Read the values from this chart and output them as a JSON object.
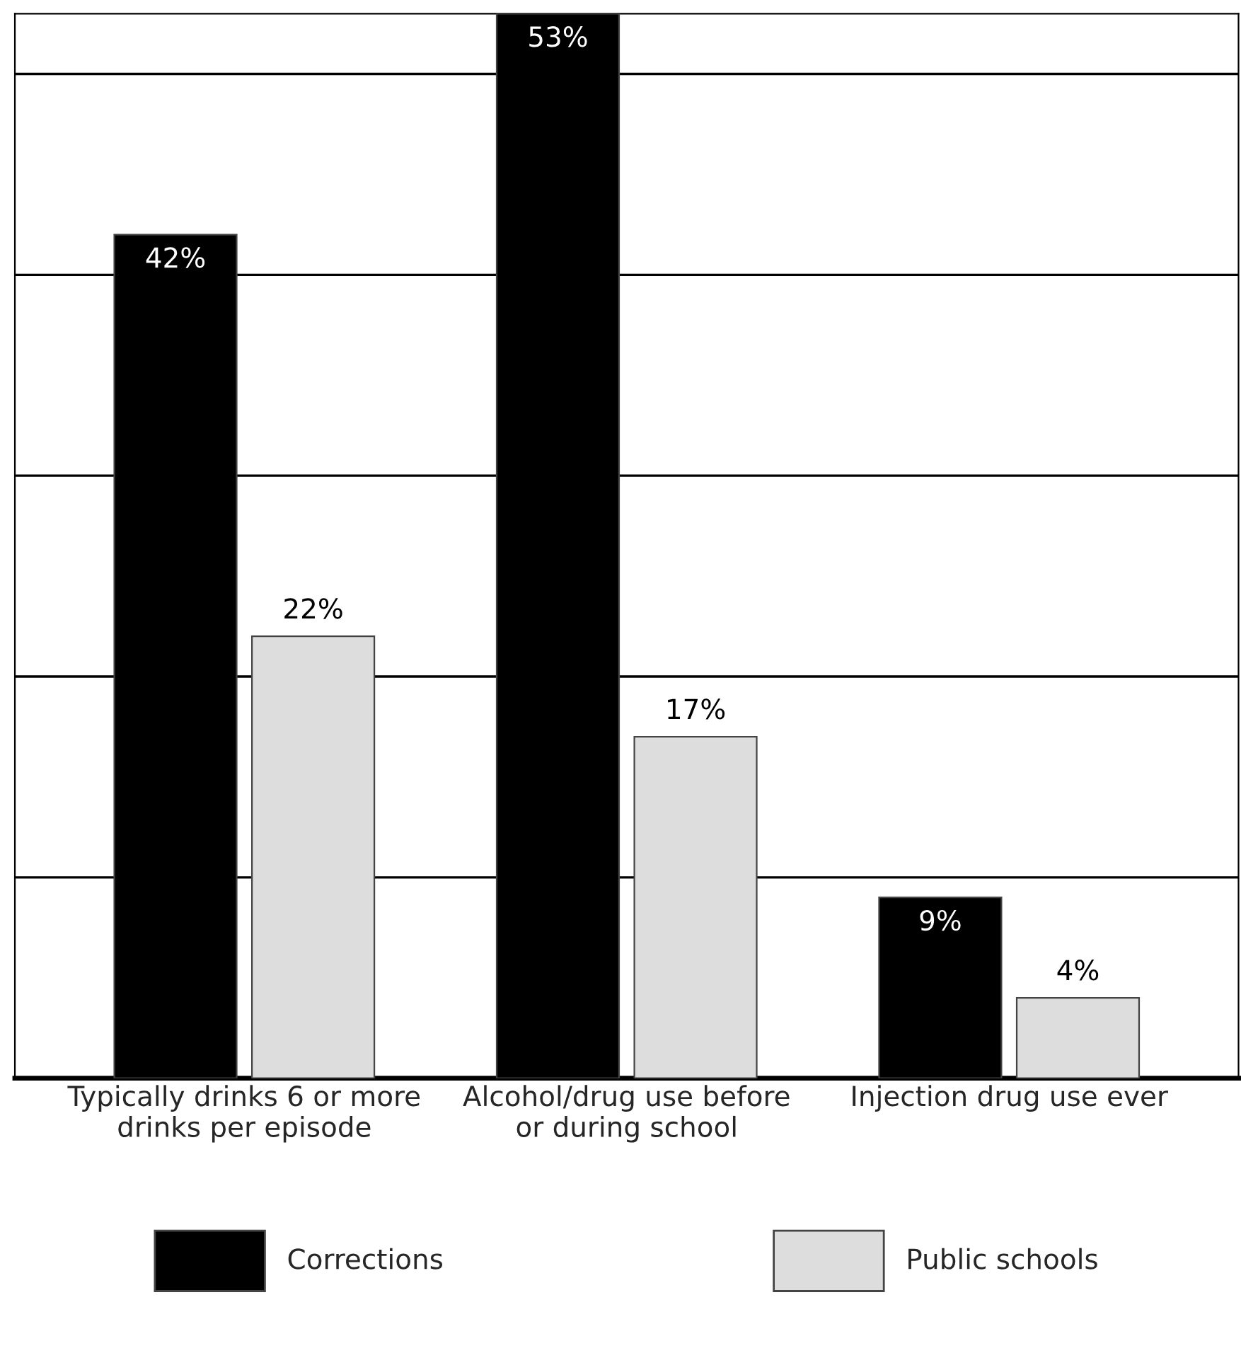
{
  "chart_data": {
    "type": "bar",
    "categories": [
      "Typically drinks 6 or more\ndrinks per episode",
      "Alcohol/drug use before\nor during school",
      "Injection drug use ever"
    ],
    "series": [
      {
        "name": "Corrections",
        "color": "#000000",
        "values": [
          42,
          53,
          9
        ],
        "value_labels": [
          "42%",
          "53%",
          "9%"
        ]
      },
      {
        "name": "Public schools",
        "color": "#dddddd",
        "values": [
          22,
          17,
          4
        ],
        "value_labels": [
          "22%",
          "17%",
          "4%"
        ]
      }
    ],
    "ylim": [
      0,
      53
    ],
    "yticks": [
      {
        "value": 10,
        "label": null
      },
      {
        "value": 20,
        "label": null
      },
      {
        "value": 30,
        "label": null
      },
      {
        "value": 40,
        "label": null
      },
      {
        "value": 50,
        "label": null
      }
    ],
    "grid": "y",
    "legend": "bottom",
    "tick_labels": "x"
  }
}
